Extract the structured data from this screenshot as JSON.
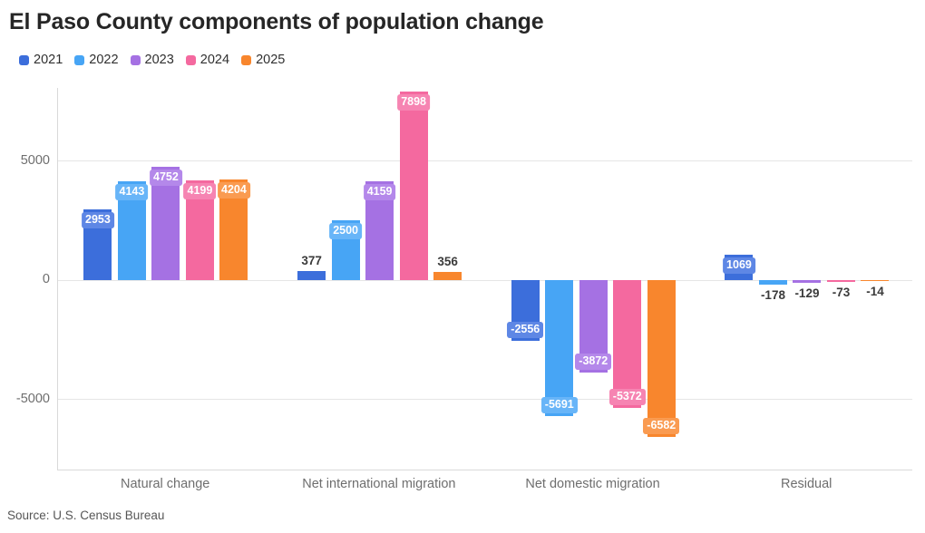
{
  "title": "El Paso County components of population change",
  "source": "Source: U.S. Census Bureau",
  "colors": {
    "grid": "#e6e6e6",
    "axis": "#d9d9d9",
    "outside_label_text": "#3b3b3b",
    "pill_text": "#ffffff"
  },
  "chart_data": {
    "type": "bar",
    "title": "El Paso County components of population change",
    "xlabel": "",
    "ylabel": "",
    "grid": true,
    "legend_position": "top",
    "categories": [
      "Natural change",
      "Net international migration",
      "Net domestic migration",
      "Residual"
    ],
    "series": [
      {
        "name": "2021",
        "color": "#3c6edb",
        "label_bg": "#5e87e5",
        "values": [
          2953,
          377,
          -2556,
          1069
        ]
      },
      {
        "name": "2022",
        "color": "#47a5f5",
        "label_bg": "#68b5f8",
        "values": [
          4143,
          2500,
          -5691,
          -178
        ]
      },
      {
        "name": "2023",
        "color": "#a571e3",
        "label_bg": "#b488ea",
        "values": [
          4752,
          4159,
          -3872,
          -129
        ]
      },
      {
        "name": "2024",
        "color": "#f4699f",
        "label_bg": "#f684b2",
        "values": [
          4199,
          7898,
          -5372,
          -73
        ]
      },
      {
        "name": "2025",
        "color": "#f8862d",
        "label_bg": "#fa9b51",
        "values": [
          4204,
          356,
          -6582,
          -14
        ]
      }
    ],
    "y_axis": {
      "ticks": [
        5000,
        0,
        -5000
      ],
      "min": -8000,
      "max": 8060
    }
  }
}
